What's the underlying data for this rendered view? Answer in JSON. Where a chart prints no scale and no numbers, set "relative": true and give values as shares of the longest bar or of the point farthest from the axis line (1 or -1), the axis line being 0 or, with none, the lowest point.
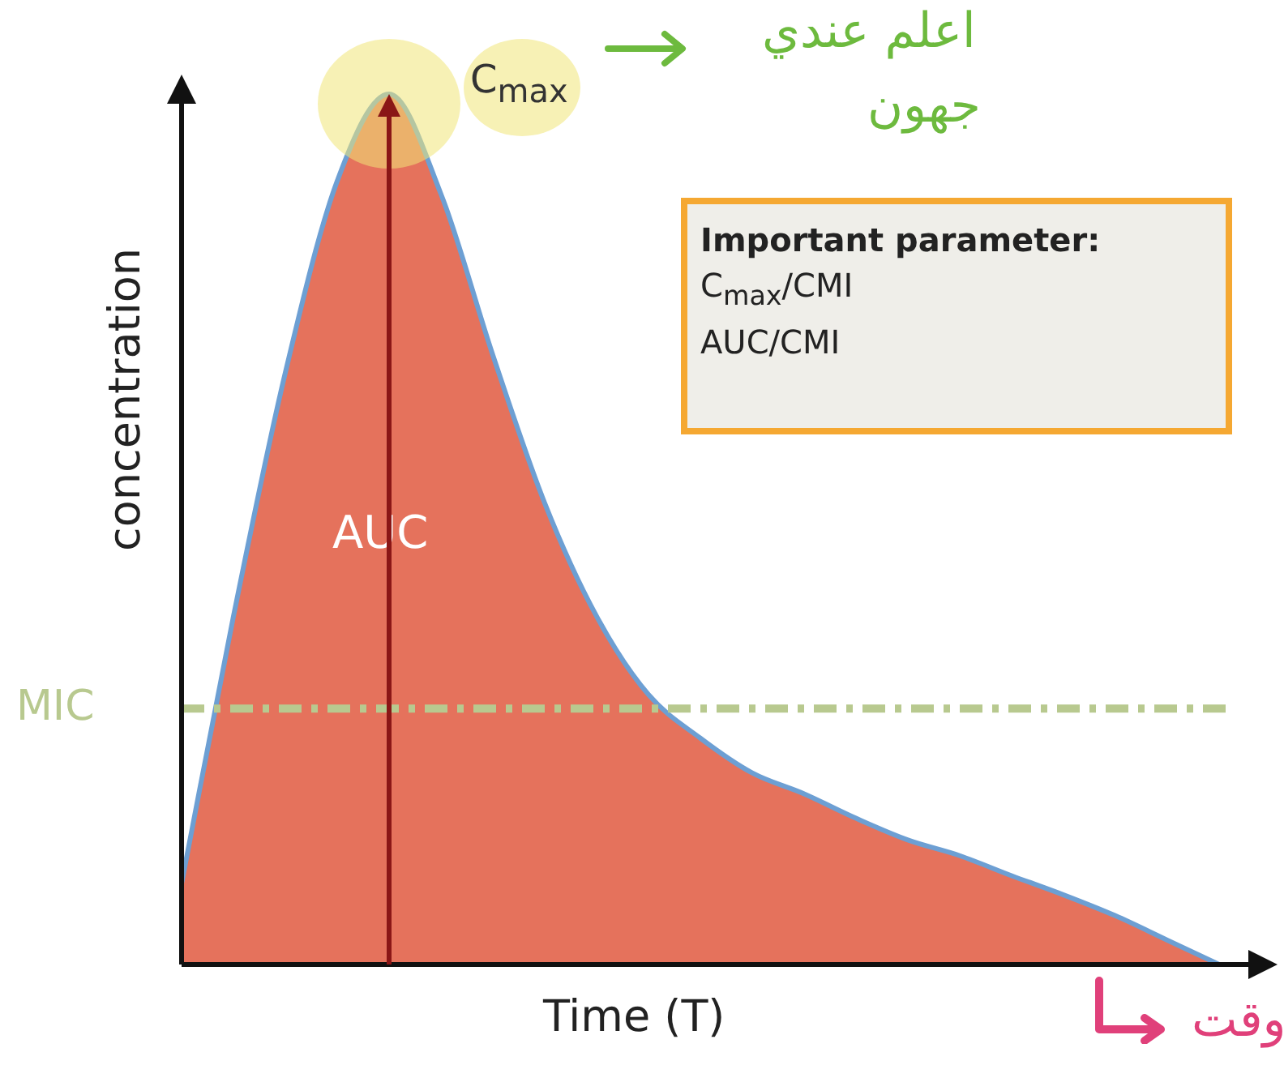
{
  "chart_data": {
    "type": "area",
    "relative": true,
    "xlabel": "Time (T)",
    "ylabel": "concentration",
    "categories": [
      null,
      null,
      null,
      null,
      null,
      null,
      null,
      null,
      null,
      null,
      null,
      null,
      null,
      null,
      null,
      null,
      null,
      null,
      null,
      null,
      null
    ],
    "series": [
      {
        "color": "#e5725c",
        "values": [
          0.093,
          0.4,
          0.68,
          0.9,
          1,
          0.885,
          0.7,
          0.53,
          0.4,
          0.31,
          0.26,
          0.22,
          0.196,
          0.168,
          0.143,
          0.125,
          0.102,
          0.08,
          0.056,
          0.028,
          0
        ]
      }
    ],
    "ref_lines": [
      {
        "axis": "y",
        "value": 0.294,
        "label": "MIC",
        "color": "#b8c98f",
        "line_style": "dashed"
      }
    ],
    "annotations": [
      "C$_{max}$",
      "AUC",
      "Important parameter:",
      "C$_{max}$/CMI",
      "AUC/CMI",
      "اعلم عندي",
      "جهون",
      "وقت"
    ],
    "legend": false
  }
}
